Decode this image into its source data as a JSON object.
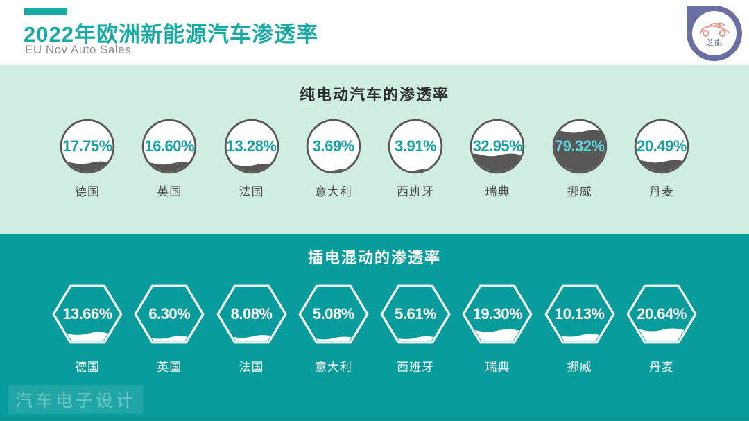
{
  "header": {
    "title": "2022年欧洲新能源汽车渗透率",
    "subtitle": "EU Nov Auto Sales",
    "logo_text": "芝能"
  },
  "colors": {
    "title_teal": "#17aaa5",
    "mint_bg": "#cfeee1",
    "teal_bg": "#089c9d",
    "dark_gray_fill": "#595656",
    "percent_teal": "#18a0a5",
    "percent_on_dark": "#5cd8e2",
    "logo_purple": "#6a6fa3",
    "logo_car_coral": "#ee8378"
  },
  "chart_data": [
    {
      "type": "pictorial-fill",
      "shape": "circle",
      "title": "纯电动汽车的渗透率",
      "unit": "%",
      "ylim": [
        0,
        100
      ],
      "categories": [
        "德国",
        "英国",
        "法国",
        "意大利",
        "西班牙",
        "瑞典",
        "挪威",
        "丹麦"
      ],
      "values": [
        17.75,
        16.6,
        13.28,
        3.69,
        3.91,
        32.95,
        79.32,
        20.49
      ],
      "labels": [
        "17.75%",
        "16.60%",
        "13.28%",
        "3.69%",
        "3.91%",
        "32.95%",
        "79.32%",
        "20.49%"
      ]
    },
    {
      "type": "pictorial-fill",
      "shape": "hexagon",
      "title": "插电混动的渗透率",
      "unit": "%",
      "ylim": [
        0,
        100
      ],
      "categories": [
        "德国",
        "英国",
        "法国",
        "意大利",
        "西班牙",
        "瑞典",
        "挪威",
        "丹麦"
      ],
      "values": [
        13.66,
        6.3,
        8.08,
        5.08,
        5.61,
        19.3,
        10.13,
        20.64
      ],
      "labels": [
        "13.66%",
        "6.30%",
        "8.08%",
        "5.08%",
        "5.61%",
        "19.30%",
        "10.13%",
        "20.64%"
      ]
    }
  ],
  "watermark": "汽车电子设计"
}
